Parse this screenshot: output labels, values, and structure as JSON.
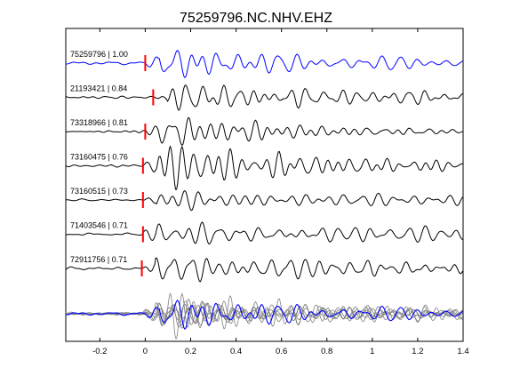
{
  "chart_data": {
    "type": "line",
    "title": "75259796.NC.NHV.EHZ",
    "xlabel": "",
    "ylabel": "",
    "xlim": [
      -0.35,
      1.4
    ],
    "xticks": [
      -0.2,
      0,
      0.2,
      0.4,
      0.6,
      0.8,
      1,
      1.2,
      1.4
    ],
    "xtick_labels": [
      "-0.2",
      "0",
      "0.2",
      "0.4",
      "0.6",
      "0.8",
      "1",
      "1.2",
      "1.4"
    ],
    "grid": false,
    "colors": {
      "reference": "#0000ff",
      "trace": "#000000",
      "pick": "#ff0000",
      "stack": "#808080"
    },
    "traces": [
      {
        "id": "75259796",
        "cc": "1.00",
        "label": "75259796 | 1.00",
        "pick": 0.0,
        "color": "#0000ff",
        "seed": 11
      },
      {
        "id": "21193421",
        "cc": "0.84",
        "label": "21193421 | 0.84",
        "pick": 0.035,
        "color": "#000000",
        "seed": 23
      },
      {
        "id": "73318966",
        "cc": "0.81",
        "label": "73318966 | 0.81",
        "pick": 0.0,
        "color": "#000000",
        "seed": 37
      },
      {
        "id": "73160475",
        "cc": "0.76",
        "label": "73160475 | 0.76",
        "pick": -0.01,
        "color": "#000000",
        "seed": 41
      },
      {
        "id": "73160515",
        "cc": "0.73",
        "label": "73160515 | 0.73",
        "pick": -0.01,
        "color": "#000000",
        "seed": 53
      },
      {
        "id": "71403546",
        "cc": "0.71",
        "label": "71403546 | 0.71",
        "pick": -0.01,
        "color": "#000000",
        "seed": 67
      },
      {
        "id": "72911756",
        "cc": "0.71",
        "label": "72911756 | 0.71",
        "pick": -0.015,
        "color": "#000000",
        "seed": 79
      }
    ],
    "stack": {
      "description_none": ""
    }
  }
}
